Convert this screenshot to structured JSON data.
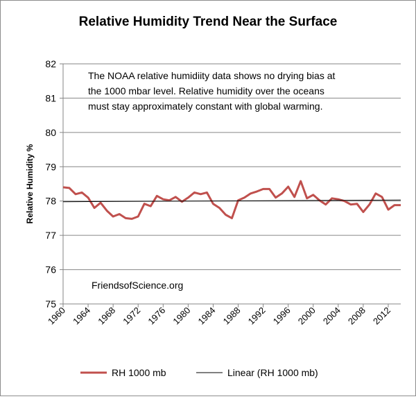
{
  "chart_data": {
    "type": "line",
    "title": "Relative Humidity Trend Near the Surface",
    "ylabel": "Relative Humidity %",
    "xlabel": "",
    "ylim": [
      75,
      82
    ],
    "yticks": [
      "75",
      "76",
      "77",
      "78",
      "79",
      "80",
      "81",
      "82"
    ],
    "xlim": [
      1960,
      2014
    ],
    "xticks": [
      "1960",
      "1964",
      "1968",
      "1972",
      "1976",
      "1980",
      "1984",
      "1988",
      "1992",
      "1996",
      "2000",
      "2004",
      "2008",
      "2012"
    ],
    "grid": true,
    "annotation_lines": [
      "The NOAA relative humidiity data shows no drying bias at",
      "the 1000 mbar level.  Relative humidity over the oceans",
      "must stay  approximately constant with global warming."
    ],
    "watermark": "FriendsofScience.org",
    "series": [
      {
        "name": "RH 1000  mb",
        "color": "#c0504d",
        "x": [
          1960,
          1961,
          1962,
          1963,
          1964,
          1965,
          1966,
          1967,
          1968,
          1969,
          1970,
          1971,
          1972,
          1973,
          1974,
          1975,
          1976,
          1977,
          1978,
          1979,
          1980,
          1981,
          1982,
          1983,
          1984,
          1985,
          1986,
          1987,
          1988,
          1989,
          1990,
          1991,
          1992,
          1993,
          1994,
          1995,
          1996,
          1997,
          1998,
          1999,
          2000,
          2001,
          2002,
          2003,
          2004,
          2005,
          2006,
          2007,
          2008,
          2009,
          2010,
          2011,
          2012,
          2013,
          2014
        ],
        "values": [
          78.4,
          78.38,
          78.2,
          78.25,
          78.1,
          77.8,
          77.95,
          77.72,
          77.55,
          77.62,
          77.5,
          77.48,
          77.55,
          77.92,
          77.85,
          78.15,
          78.05,
          78.02,
          78.12,
          77.98,
          78.1,
          78.25,
          78.2,
          78.25,
          77.92,
          77.8,
          77.6,
          77.5,
          78.02,
          78.1,
          78.22,
          78.28,
          78.35,
          78.35,
          78.1,
          78.22,
          78.42,
          78.12,
          78.58,
          78.08,
          78.18,
          78.02,
          77.9,
          78.08,
          78.05,
          78.0,
          77.9,
          77.92,
          77.68,
          77.9,
          78.22,
          78.12,
          77.75,
          77.88,
          77.88
        ]
      },
      {
        "name": "Linear (RH 1000 mb)",
        "color": "#000000",
        "x": [
          1960,
          2014
        ],
        "values": [
          77.98,
          78.03
        ]
      }
    ]
  }
}
